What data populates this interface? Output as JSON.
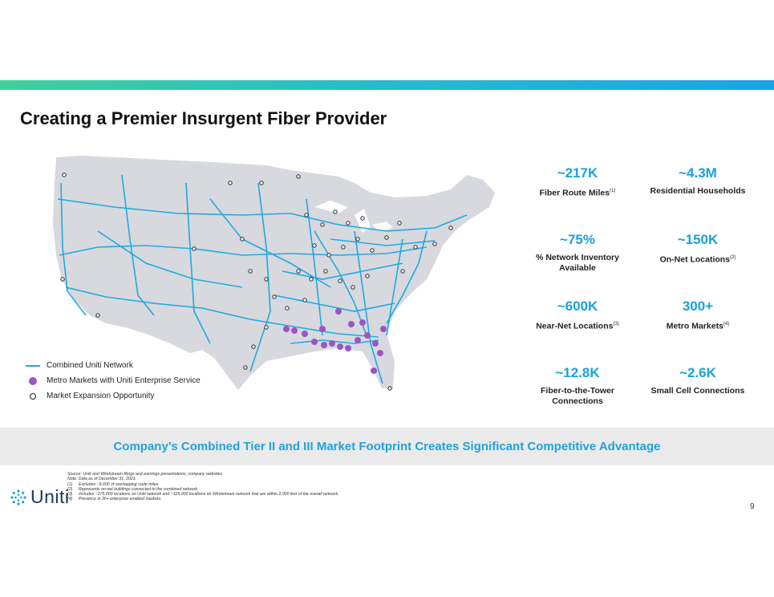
{
  "title": "Creating a Premier Insurgent Fiber Provider",
  "colors": {
    "accent": "#1aa0de",
    "network_line": "#1fa9e1",
    "metro_dot": "#9b55c4",
    "land": "#d7d9df"
  },
  "legend": {
    "network": "Combined Uniti Network",
    "metro": "Metro Markets with Uniti Enterprise Service",
    "expansion": "Market Expansion Opportunity"
  },
  "stats": [
    {
      "value": "~217K",
      "label": "Fiber Route Miles",
      "note": "(1)"
    },
    {
      "value": "~4.3M",
      "label": "Residential Households",
      "note": ""
    },
    {
      "value": "~75%",
      "label": "% Network Inventory Available",
      "note": ""
    },
    {
      "value": "~150K",
      "label": "On-Net Locations",
      "note": "(2)"
    },
    {
      "value": "~600K",
      "label": "Near-Net Locations",
      "note": "(3)"
    },
    {
      "value": "300+",
      "label": "Metro Markets",
      "note": "(4)"
    },
    {
      "value": "~12.8K",
      "label": "Fiber-to-the-Tower Connections",
      "note": ""
    },
    {
      "value": "~2.6K",
      "label": "Small Cell Connections",
      "note": ""
    }
  ],
  "banner": "Company’s Combined Tier II and III Market Footprint Creates Significant Competitive Advantage",
  "logo_text": "Uniti",
  "notes": {
    "source": "Source: Uniti and Windstream filings and earnings presentations; company websites.",
    "note": "Note: Data as of December 31, 2023.",
    "footnotes": [
      {
        "key": "(1)",
        "text": "Excludes ~9,000 of overlapping route miles."
      },
      {
        "key": "(2)",
        "text": "Represents on-net buildings connected to the combined network."
      },
      {
        "key": "(3)",
        "text": "Includes ~275,000 locations on Uniti network and ~325,000 locations on Windstream network that are within 2,000 feet of the overall network."
      },
      {
        "key": "(4)",
        "text": "Presence in 30+ enterprise enabled markets."
      }
    ]
  },
  "page_number": "9"
}
